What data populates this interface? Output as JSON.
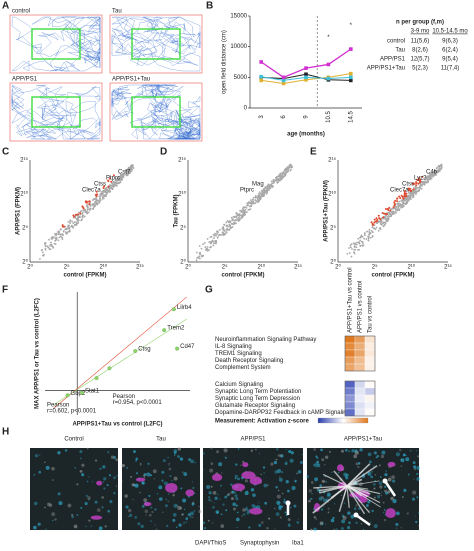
{
  "panel_labels": [
    "A",
    "B",
    "C",
    "D",
    "E",
    "F",
    "G",
    "H"
  ],
  "panel_a": {
    "titles": [
      "control",
      "Tau",
      "APP/PS1",
      "APP/PS1+Tau"
    ]
  },
  "chart_data": [
    {
      "type": "line",
      "x_label": "age (months)",
      "y_label": "open field distance (cm)",
      "categories": [
        "3",
        "6",
        "9",
        "10.5",
        "14.5"
      ],
      "ylim": [
        0,
        15000
      ],
      "yticks": [
        0,
        5000,
        10000,
        15000
      ],
      "series": [
        {
          "name": "control",
          "color": "#222222",
          "values": [
            5000,
            4800,
            5500,
            4600,
            4500
          ]
        },
        {
          "name": "Tau",
          "color": "#e0b030",
          "values": [
            4500,
            4000,
            4600,
            5000,
            5600
          ]
        },
        {
          "name": "APP/PS1",
          "color": "#40c0d8",
          "values": [
            5100,
            4500,
            5000,
            4800,
            5000
          ]
        },
        {
          "name": "APP/PS1+Tau",
          "color": "#d030d0",
          "values": [
            7500,
            5000,
            6500,
            7100,
            9600
          ]
        }
      ],
      "annotations": [
        {
          "x": "10.5",
          "y": 11500,
          "text": "*"
        },
        {
          "x": "14.5",
          "y": 13500,
          "text": "*"
        }
      ]
    },
    {
      "type": "scatter",
      "x_label": "APP/PS1+Tau vs control (L2FC)",
      "y_label": "MAX APP/PS1 or Tau vs control (L2FC)",
      "xlim": [
        -2,
        7
      ],
      "ylim": [
        -2,
        8
      ],
      "x": [
        6.0,
        5.4,
        3.6,
        6.2,
        -0.6,
        0.3,
        1.2,
        2.0
      ],
      "values": [
        6.6,
        4.9,
        3.2,
        3.4,
        -0.4,
        -0.2,
        1.0,
        1.8
      ],
      "point_labels": [
        "Lilrb4",
        "Trem2",
        "Ctsg",
        "Cd47",
        "Gbp2",
        "Stat1",
        null,
        null
      ],
      "color": "#8fd46a",
      "annotations": [
        [
          "Pearson",
          "r=0.954, p<0.0001"
        ],
        [
          "Pearson",
          "r=0.602, p<0.0001"
        ]
      ]
    }
  ],
  "panel_b_table": {
    "title": "n per group (f,m)",
    "columns": [
      "3-9 mo",
      "10.5-14.5 mo"
    ],
    "rows": [
      [
        "11(5,6)",
        "9(6,3)"
      ],
      [
        "8(2,6)",
        "6(2,4)"
      ],
      [
        "12(5,7)",
        "9(5,4)"
      ],
      [
        "5(2,3)",
        "11(7,4)"
      ]
    ]
  },
  "panel_cde": {
    "tick_labels": [
      "2⁰",
      "2⁵",
      "2¹⁰",
      "2¹⁵"
    ],
    "plots": [
      {
        "x_label": "control (FPKM)",
        "y_label": "APP/PS1 (FPKM)",
        "genes": [
          "Clec7a",
          "Ctss",
          "Ptprc",
          "Cst7"
        ]
      },
      {
        "x_label": "control (FPKM)",
        "y_label": "Tau (FPKM)",
        "genes": [
          "Ptprc",
          "Mag"
        ]
      },
      {
        "x_label": "control (FPKM)",
        "y_label": "APP/PS1+Tau (FPKM)",
        "genes": [
          "Clec7a",
          "Ctss",
          "Lyz2",
          "C4b"
        ]
      }
    ]
  },
  "panel_g": {
    "columns": [
      "APP/PS1+Tau vs control",
      "APP/PS1 vs control",
      "Tau vs control"
    ],
    "zlim": [
      -3,
      3
    ],
    "legend_label": "Measurement: Activation z-score",
    "rows": [
      {
        "label": "Neuroinflammation Signaling Pathway",
        "values": [
          3.0,
          2.2,
          0.6
        ]
      },
      {
        "label": "IL-8 Signaling",
        "values": [
          2.6,
          1.8,
          0.4
        ]
      },
      {
        "label": "TREM1 Signaling",
        "values": [
          2.8,
          2.0,
          0.5
        ]
      },
      {
        "label": "Death Receptor Signaling",
        "values": [
          2.2,
          1.5,
          0.3
        ]
      },
      {
        "label": "Complement System",
        "values": [
          2.0,
          1.4,
          0.3
        ]
      },
      {
        "label": "Calcium Signaling",
        "values": [
          -2.4,
          -0.6,
          0.1
        ]
      },
      {
        "label": "Synaptic Long Term Potentiation",
        "values": [
          -2.0,
          -0.4,
          -0.8
        ]
      },
      {
        "label": "Synaptic Long Term Depression",
        "values": [
          -1.6,
          -0.3,
          0.2
        ]
      },
      {
        "label": "Glutamate Receptor Signaling",
        "values": [
          -1.8,
          -0.5,
          -0.2
        ]
      },
      {
        "label": "Dopamine-DARPP32 Feedback in cAMP Signaling",
        "values": [
          -2.2,
          -0.4,
          0.1
        ]
      }
    ]
  },
  "panel_h": {
    "titles": [
      "Control",
      "Tau",
      "APP/PS1",
      "APP/PS1+Tau"
    ],
    "stains": [
      "DAPI/ThioS",
      "Synaptophysin",
      "Iba1"
    ],
    "stain_colors": [
      "#999999",
      "#30b8e0",
      "#c040c0"
    ]
  }
}
